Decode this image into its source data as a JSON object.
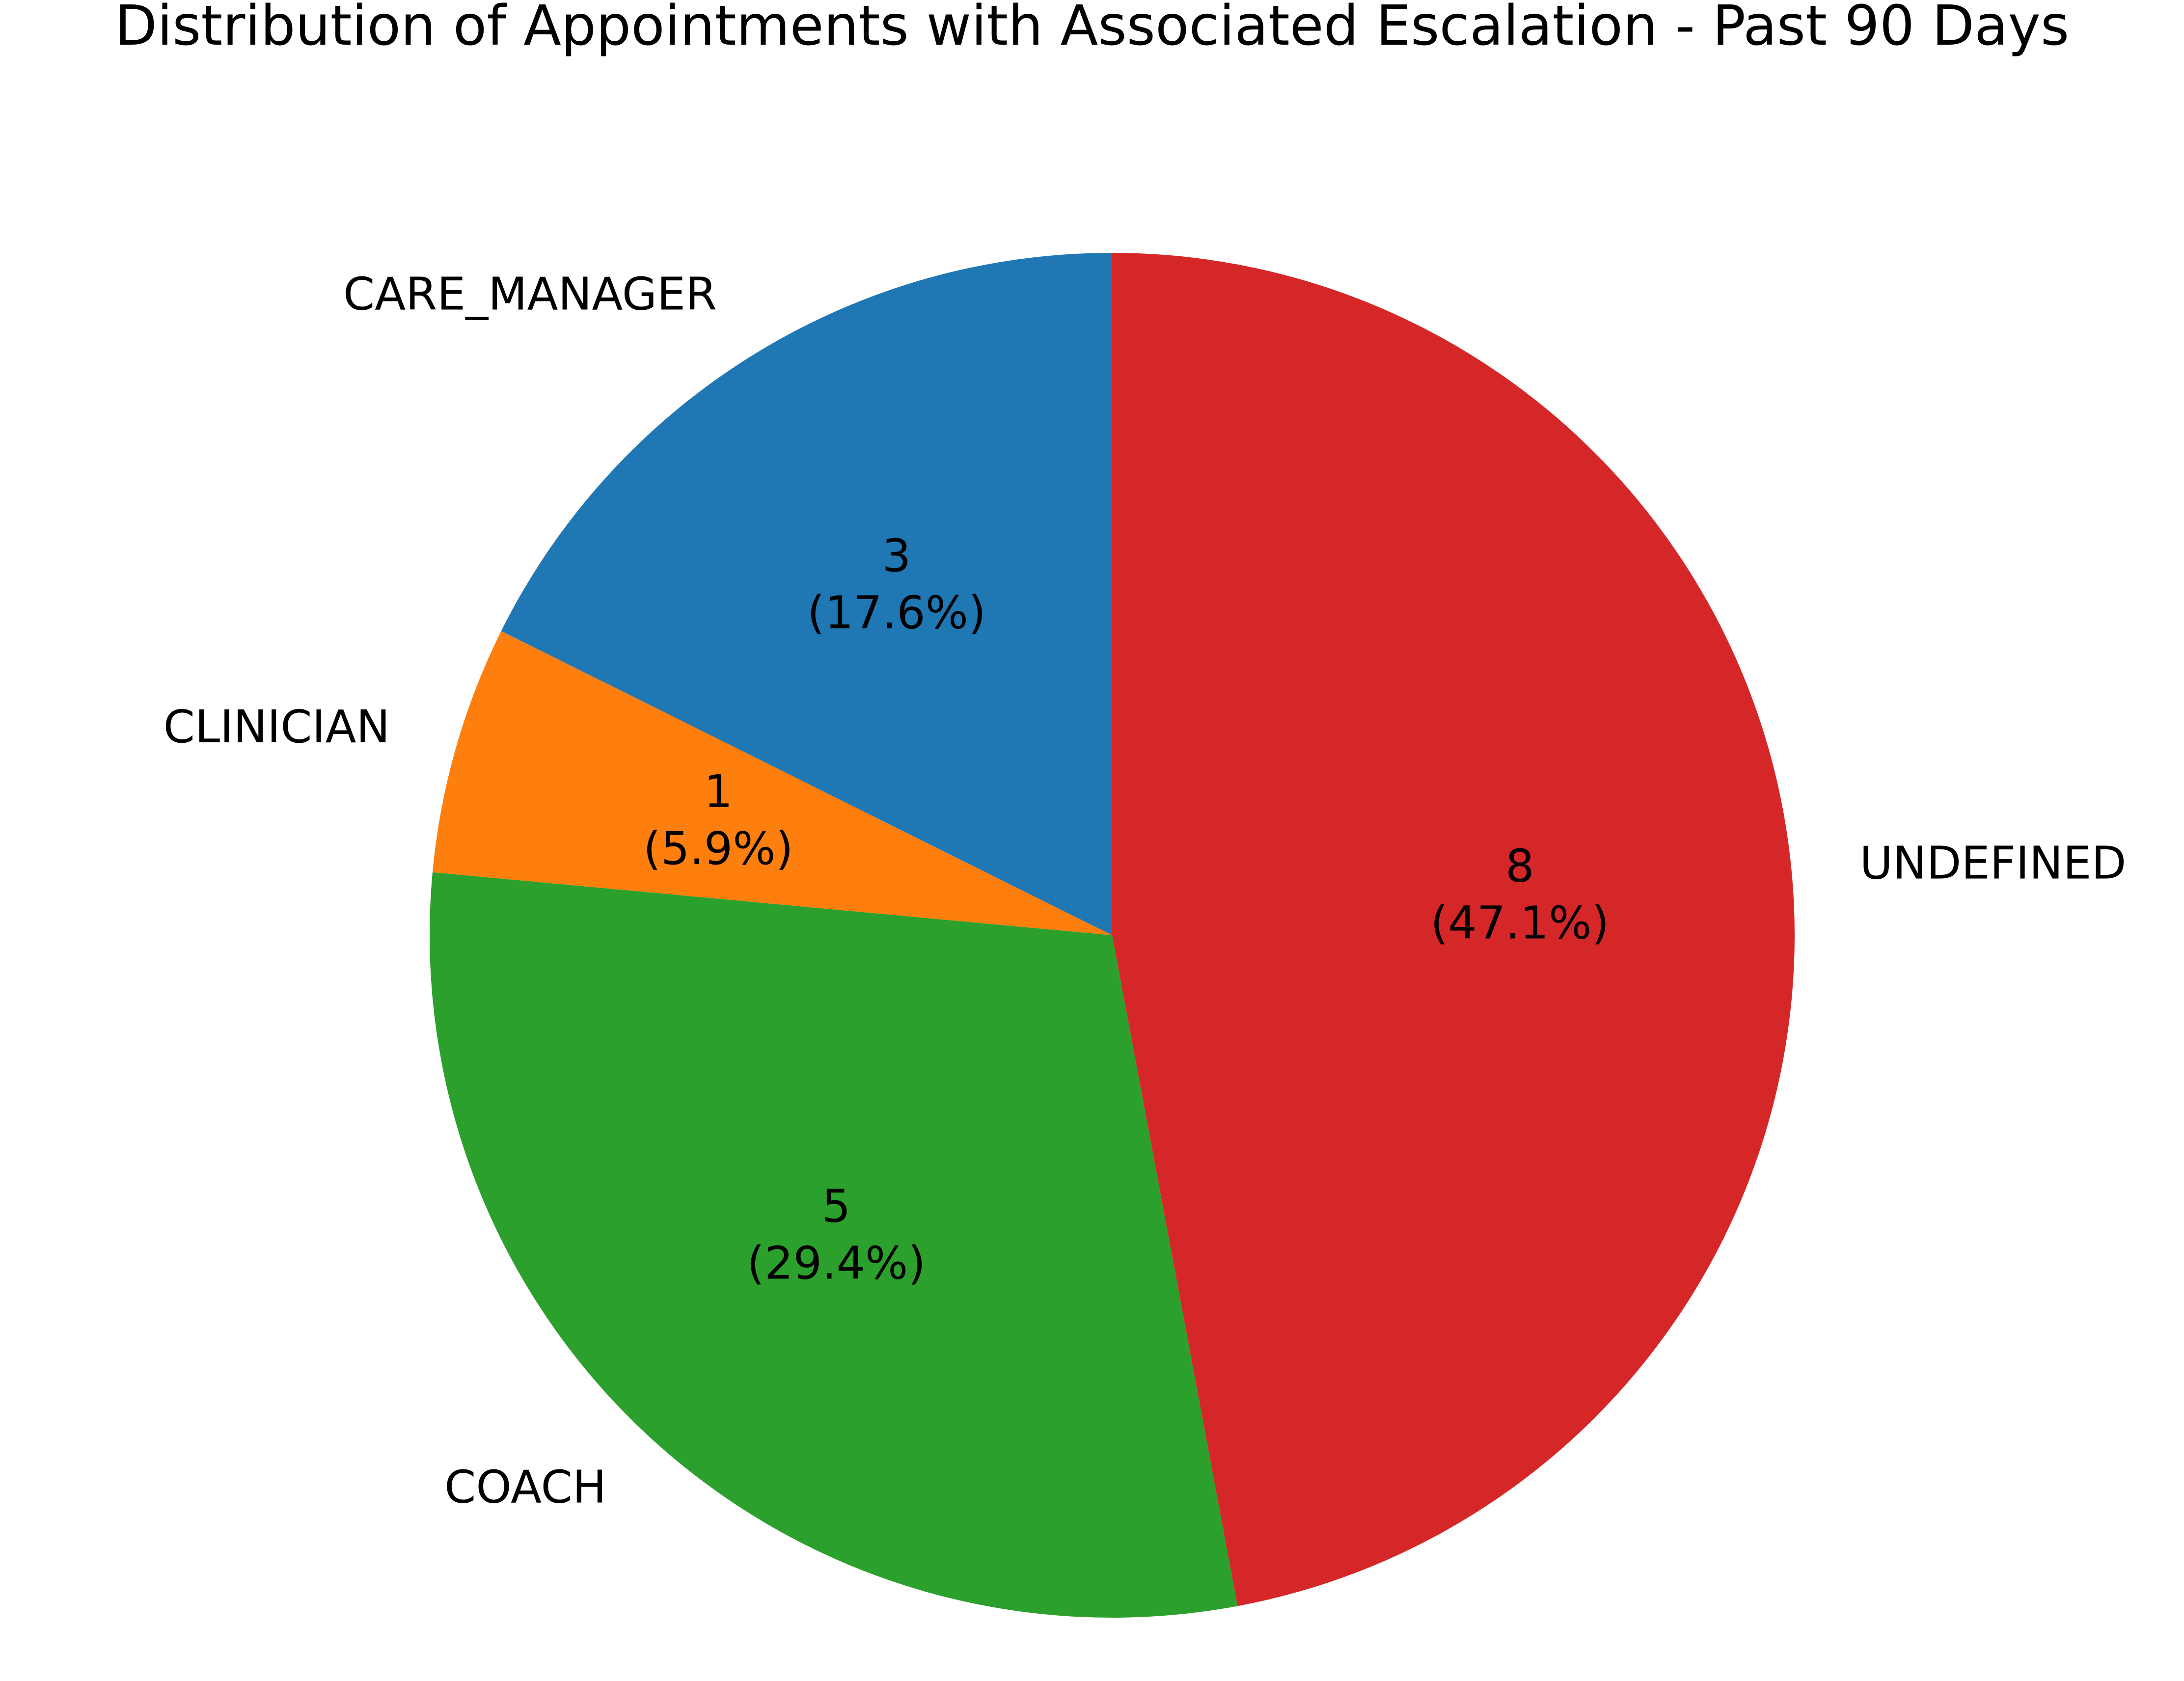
{
  "chart_data": {
    "type": "pie",
    "title": "Distribution of Appointments with Associated Escalation - Past 90 Days",
    "start_angle_degrees": 90,
    "direction": "counterclockwise",
    "slices": [
      {
        "label": "CARE_MANAGER",
        "value": 3,
        "percent_label": "(17.6%)",
        "color": "#1f77b4"
      },
      {
        "label": "CLINICIAN",
        "value": 1,
        "percent_label": "(5.9%)",
        "color": "#ff7f0e"
      },
      {
        "label": "COACH",
        "value": 5,
        "percent_label": "(29.4%)",
        "color": "#2ca02c"
      },
      {
        "label": "UNDEFINED",
        "value": 8,
        "percent_label": "(47.1%)",
        "color": "#d62728"
      }
    ]
  }
}
